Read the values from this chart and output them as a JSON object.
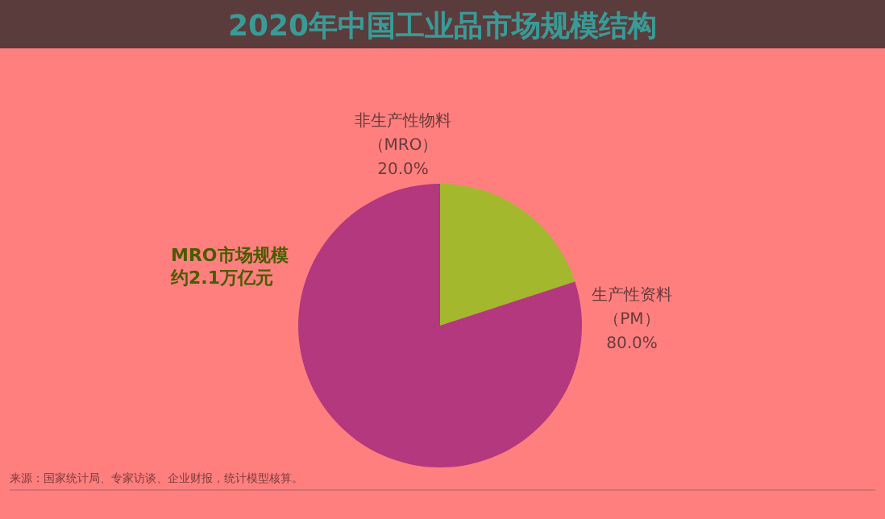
{
  "chart_data": {
    "type": "pie",
    "title": "2020年中国工业品市场规模结构",
    "categories": [
      "非生产性物料（MRO）",
      "生产性资料（PM）"
    ],
    "values": [
      20,
      80
    ],
    "colors": [
      "#a3b82c",
      "#b3387e"
    ],
    "value_labels": [
      "20.0%",
      "80.0%"
    ],
    "annotations": [
      "MRO市场规模约2.1万亿元",
      "来源：国家统计局、专家访谈、企业财报，统计模型核算。"
    ]
  }
}
